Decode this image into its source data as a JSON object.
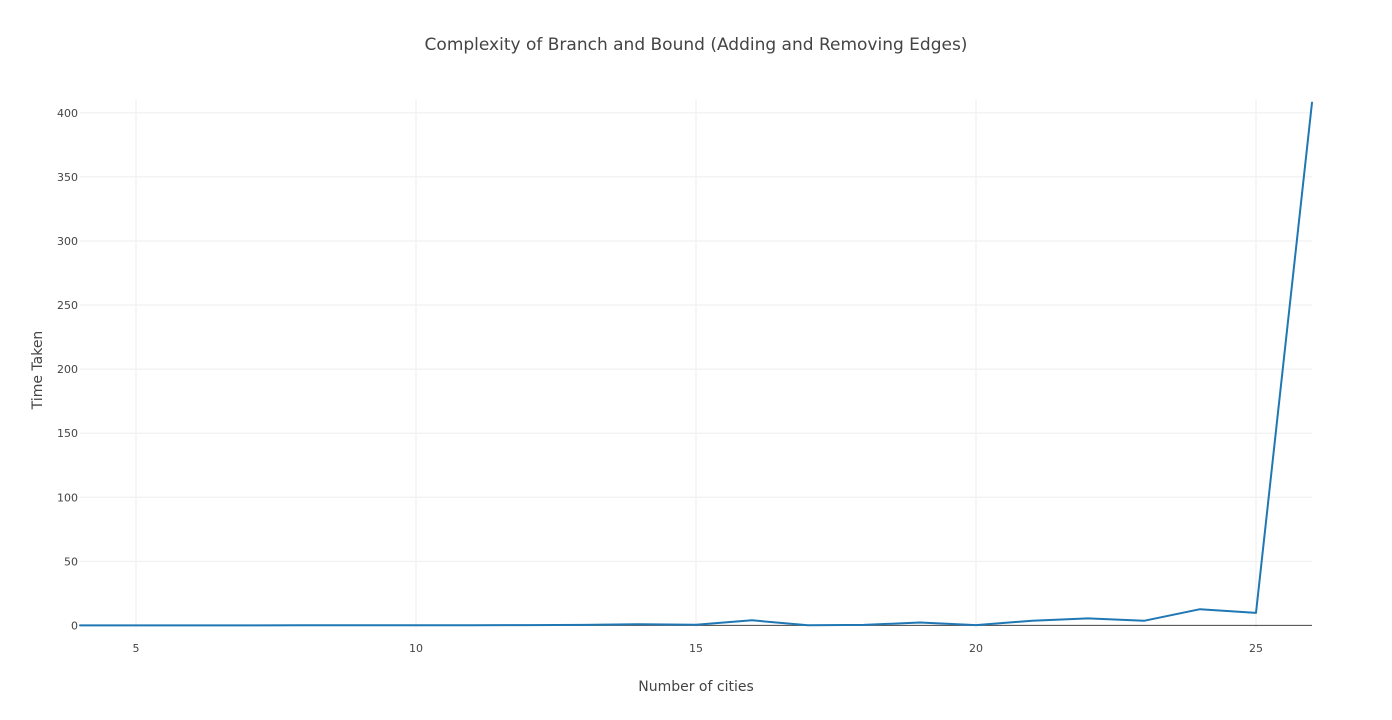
{
  "chart_data": {
    "type": "line",
    "title": "Complexity of Branch and Bound (Adding and Removing Edges)",
    "xlabel": "Number of cities",
    "ylabel": "Time Taken",
    "xlim": [
      4,
      26
    ],
    "ylim": [
      -2,
      410
    ],
    "x_ticks": [
      5,
      10,
      15,
      20,
      25
    ],
    "y_ticks": [
      0,
      50,
      100,
      150,
      200,
      250,
      300,
      350,
      400
    ],
    "grid": true,
    "legend": "none",
    "series": [
      {
        "color": "#1f77b4",
        "x": [
          4,
          5,
          6,
          7,
          8,
          9,
          10,
          11,
          12,
          13,
          14,
          15,
          16,
          17,
          18,
          19,
          20,
          21,
          22,
          23,
          24,
          25,
          26
        ],
        "y": [
          0.0,
          0.0,
          0.0,
          0.0,
          0.1,
          0.1,
          0.2,
          0.2,
          0.3,
          0.4,
          1.0,
          0.6,
          4.0,
          0.1,
          0.4,
          2.3,
          0.3,
          3.7,
          5.5,
          3.6,
          12.7,
          9.8,
          408
        ]
      }
    ]
  }
}
